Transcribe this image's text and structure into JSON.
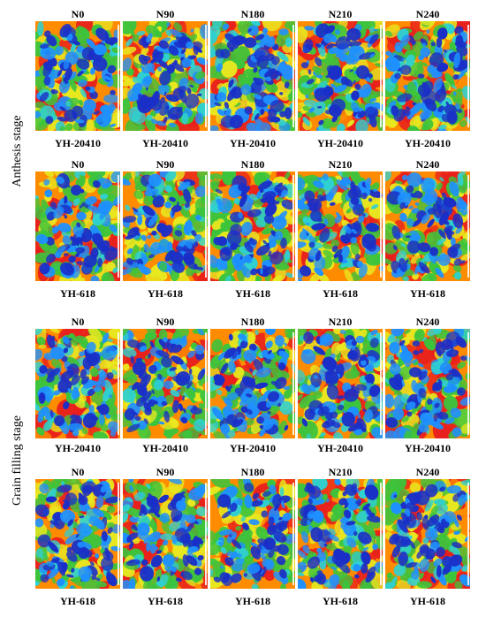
{
  "stages": [
    {
      "label": "Anthesis stage",
      "rows": [
        {
          "treatments": [
            "N0",
            "N90",
            "N180",
            "N210",
            "N240"
          ],
          "cultivars": [
            "YH-20410",
            "YH-20410",
            "YH-20410",
            "YH-20410",
            "YH-20410"
          ]
        },
        {
          "treatments": [
            "N0",
            "N90",
            "N180",
            "N210",
            "N240"
          ],
          "cultivars": [
            "YH-618",
            "YH-618",
            "YH-618",
            "YH-618",
            "YH-618"
          ]
        }
      ]
    },
    {
      "label": "Grain filling stage",
      "rows": [
        {
          "treatments": [
            "N0",
            "N90",
            "N180",
            "N210",
            "N240"
          ],
          "cultivars": [
            "YH-20410",
            "YH-20410",
            "YH-20410",
            "YH-20410",
            "YH-20410"
          ]
        },
        {
          "treatments": [
            "N0",
            "N90",
            "N180",
            "N210",
            "N240"
          ],
          "cultivars": [
            "YH-618",
            "YH-618",
            "YH-618",
            "YH-618",
            "YH-618"
          ]
        }
      ]
    }
  ],
  "image_semantics": "thermal canopy images",
  "palette": [
    "#1a2fc8",
    "#1e90ff",
    "#2fd0d0",
    "#3cc43c",
    "#e8e820",
    "#ff8c00",
    "#e8201c"
  ]
}
